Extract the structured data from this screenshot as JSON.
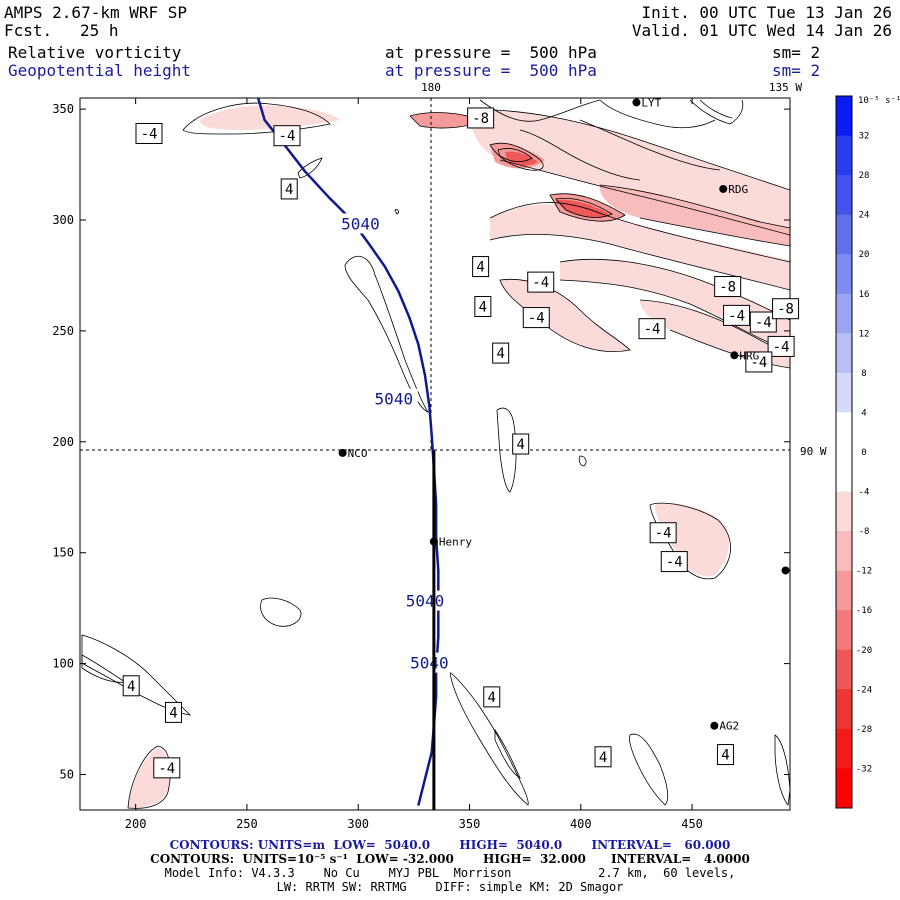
{
  "header": {
    "model": "AMPS 2.67-km WRF SP",
    "fcst_label": "Fcst.",
    "fcst_value": "25 h",
    "init": "Init. 00 UTC Tue 13 Jan 26",
    "valid": "Valid. 01 UTC Wed 14 Jan 26",
    "field1_name": "Relative vorticity",
    "field1_level": "at pressure =  500 hPa",
    "field1_sm": "sm= 2",
    "field2_name": "Geopotential height",
    "field2_level": "at pressure =  500 hPa",
    "field2_sm": "sm= 2"
  },
  "grid_labels": {
    "lon_180": "180",
    "lon_135w": "135 W",
    "lon_90w": "90 W"
  },
  "stations": [
    {
      "name": "NCO",
      "x": 293,
      "y": 195
    },
    {
      "name": "Henry",
      "x": 334,
      "y": 155
    },
    {
      "name": "RDG",
      "x": 464,
      "y": 314
    },
    {
      "name": "HRG",
      "x": 469,
      "y": 239
    },
    {
      "name": "AG2",
      "x": 460,
      "y": 72
    },
    {
      "name": "LYT",
      "x": 425,
      "y": 353
    },
    {
      "name": "",
      "x": 492,
      "y": 142
    }
  ],
  "chart_data": {
    "type": "contour",
    "xlim": [
      175,
      494
    ],
    "ylim": [
      34,
      355
    ],
    "xticks": [
      200,
      250,
      300,
      350,
      400,
      450
    ],
    "yticks": [
      50,
      100,
      150,
      200,
      250,
      300,
      350
    ],
    "height_contour": {
      "value": 5040,
      "units": "m",
      "label": "5040",
      "path": [
        [
          255,
          355
        ],
        [
          258,
          345
        ],
        [
          266,
          335
        ],
        [
          276,
          322
        ],
        [
          287,
          310
        ],
        [
          297,
          300
        ],
        [
          305,
          289
        ],
        [
          312,
          279
        ],
        [
          318,
          268
        ],
        [
          323,
          256
        ],
        [
          327,
          244
        ],
        [
          330,
          230
        ],
        [
          332,
          216
        ],
        [
          333,
          203
        ],
        [
          334,
          188
        ],
        [
          335,
          172
        ],
        [
          335,
          157
        ],
        [
          336,
          142
        ],
        [
          336,
          128
        ],
        [
          336,
          112
        ],
        [
          335,
          97
        ],
        [
          335,
          85
        ],
        [
          334,
          72
        ],
        [
          333,
          60
        ],
        [
          330,
          48
        ],
        [
          327,
          36
        ]
      ],
      "label_positions": [
        [
          301,
          298
        ],
        [
          316,
          219
        ],
        [
          330,
          128
        ],
        [
          332,
          100
        ]
      ]
    },
    "vorticity_labels": [
      {
        "text": "-4",
        "x": 206,
        "y": 339
      },
      {
        "text": "-4",
        "x": 268,
        "y": 338
      },
      {
        "text": "4",
        "x": 269,
        "y": 314
      },
      {
        "text": "-8",
        "x": 355,
        "y": 346
      },
      {
        "text": "4",
        "x": 355,
        "y": 279
      },
      {
        "text": "4",
        "x": 356,
        "y": 261
      },
      {
        "text": "4",
        "x": 364,
        "y": 240
      },
      {
        "text": "4",
        "x": 373,
        "y": 199
      },
      {
        "text": "-4",
        "x": 382,
        "y": 272
      },
      {
        "text": "-4",
        "x": 380,
        "y": 256
      },
      {
        "text": "-4",
        "x": 432,
        "y": 251
      },
      {
        "text": "-8",
        "x": 466,
        "y": 270
      },
      {
        "text": "-4",
        "x": 470,
        "y": 257
      },
      {
        "text": "-4",
        "x": 482,
        "y": 254
      },
      {
        "text": "-8",
        "x": 492,
        "y": 260
      },
      {
        "text": "-4",
        "x": 490,
        "y": 243
      },
      {
        "text": "-4",
        "x": 480,
        "y": 236
      },
      {
        "text": "-4",
        "x": 437,
        "y": 159
      },
      {
        "text": "-4",
        "x": 442,
        "y": 146
      },
      {
        "text": "4",
        "x": 198,
        "y": 90
      },
      {
        "text": "4",
        "x": 217,
        "y": 78
      },
      {
        "text": "4",
        "x": 360,
        "y": 85
      },
      {
        "text": "4",
        "x": 410,
        "y": 58
      },
      {
        "text": "4",
        "x": 465,
        "y": 59
      },
      {
        "text": "-4",
        "x": 214,
        "y": 53
      }
    ],
    "section_line": {
      "x": 334,
      "y_from": 196,
      "y_to": 34
    },
    "colorbar": {
      "units": "10⁻⁵ s⁻¹",
      "ticks": [
        32,
        28,
        24,
        20,
        16,
        12,
        8,
        4,
        0,
        -4,
        -8,
        -12,
        -16,
        -20,
        -24,
        -28,
        -32
      ],
      "colors": [
        "#0a1cf6",
        "#2a3cf2",
        "#4552ee",
        "#6171ec",
        "#7e8bf0",
        "#9aa4f2",
        "#b7c0f5",
        "#d6dafa",
        "#ffffff",
        "#ffffff",
        "#fbdada",
        "#f8bcbc",
        "#f59a9a",
        "#f27a7a",
        "#ef5858",
        "#ee3636",
        "#f41a1a",
        "#ff0000"
      ]
    }
  },
  "footer": {
    "line1": "CONTOURS: UNITS=m  LOW=  5040.0       HIGH=  5040.0       INTERVAL=   60.000",
    "line2": "CONTOURS:  UNITS=10⁻⁵ s⁻¹  LOW= -32.000       HIGH=  32.000      INTERVAL=   4.0000",
    "line3": "Model Info: V4.3.3    No Cu    MYJ PBL  Morrison            2.7 km,  60 levels,",
    "line4": "LW: RRTM SW: RRTMG    DIFF: simple KM: 2D Smagor"
  }
}
